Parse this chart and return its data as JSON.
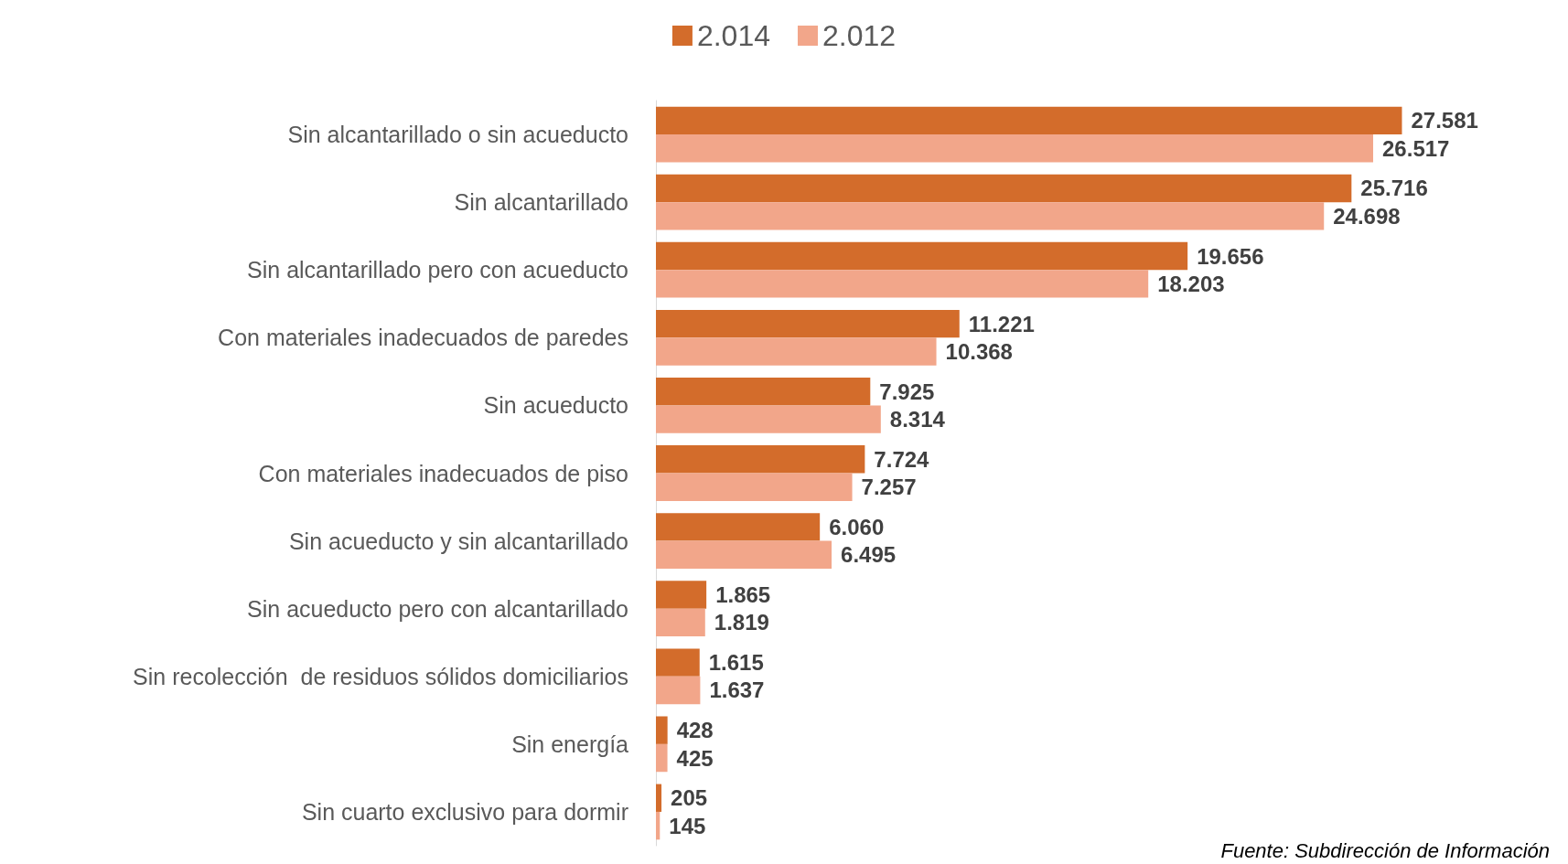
{
  "chart_data": {
    "type": "bar",
    "orientation": "horizontal",
    "legend": "top",
    "categories": [
      "Sin alcantarillado o sin acueducto",
      "Sin alcantarillado",
      "Sin alcantarillado pero con acueducto",
      "Con materiales inadecuados de paredes",
      "Sin acueducto",
      "Con materiales inadecuados de piso",
      "Sin acueducto y sin alcantarillado",
      "Sin acueducto pero con alcantarillado",
      "Sin recolección  de residuos sólidos domiciliarios",
      "Sin energía",
      "Sin cuarto exclusivo para dormir"
    ],
    "series": [
      {
        "name": "2.014",
        "color": "#d36c2b",
        "values": [
          27581,
          25716,
          19656,
          11221,
          7925,
          7724,
          6060,
          1865,
          1615,
          428,
          205
        ],
        "value_labels": [
          "27.581",
          "25.716",
          "19.656",
          "11.221",
          "7.925",
          "7.724",
          "6.060",
          "1.865",
          "1.615",
          "428",
          "205"
        ]
      },
      {
        "name": "2.012",
        "color": "#f2a68a",
        "values": [
          26517,
          24698,
          18203,
          10368,
          8314,
          7257,
          6495,
          1819,
          1637,
          425,
          145
        ],
        "value_labels": [
          "26.517",
          "24.698",
          "18.203",
          "10.368",
          "8.314",
          "7.257",
          "6.495",
          "1.819",
          "1.637",
          "425",
          "145"
        ]
      }
    ],
    "annotations": [
      "Fuente: Subdirección de Información"
    ]
  }
}
